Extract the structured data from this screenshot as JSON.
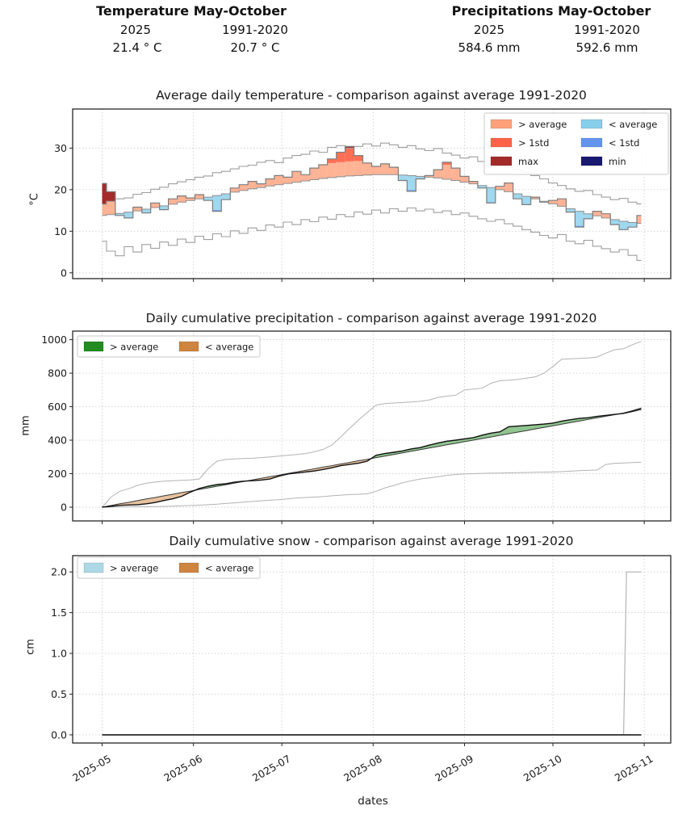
{
  "header": {
    "temperature": {
      "title": "Temperature May-October",
      "period1": "2025",
      "period2": "1991-2020",
      "value1": "21.4 ° C",
      "value2": "20.7 ° C"
    },
    "precipitation": {
      "title": "Precipitations May-October",
      "period1": "2025",
      "period2": "1991-2020",
      "value1": "584.6 mm",
      "value2": "592.6 mm"
    }
  },
  "xaxis": {
    "label": "dates",
    "tick_labels": [
      "2025-05",
      "2025-06",
      "2025-07",
      "2025-08",
      "2025-09",
      "2025-10",
      "2025-11"
    ],
    "tick_days": [
      0,
      31,
      61,
      92,
      123,
      153,
      184
    ]
  },
  "chart_data": [
    {
      "type": "line",
      "kind": "temperature_anomaly",
      "title": "Average daily temperature - comparison against average 1991-2020",
      "ylabel": "°C",
      "yticks": [
        0,
        10,
        20,
        30
      ],
      "ytick_labels": [
        "0",
        "10",
        "20",
        "30"
      ],
      "ylim": [
        -1.4,
        39.4
      ],
      "std_band": 3.5,
      "grid": true,
      "legend_position": "top-right",
      "legend": [
        {
          "label": "> average",
          "color": "#FFA07A"
        },
        {
          "label": "> 1std",
          "color": "#FF6347"
        },
        {
          "label": "max",
          "color": "#A52A2A"
        },
        {
          "label": "< average",
          "color": "#87CEEB"
        },
        {
          "label": "< 1std",
          "color": "#6495ED"
        },
        {
          "label": "min",
          "color": "#191970"
        }
      ],
      "days": [
        0,
        3,
        6,
        9,
        12,
        15,
        18,
        21,
        24,
        27,
        30,
        33,
        36,
        39,
        42,
        45,
        48,
        51,
        54,
        57,
        60,
        63,
        66,
        69,
        72,
        75,
        78,
        81,
        84,
        87,
        90,
        93,
        96,
        99,
        102,
        105,
        108,
        111,
        114,
        117,
        120,
        123,
        126,
        129,
        132,
        135,
        138,
        141,
        144,
        147,
        150,
        153,
        156,
        159,
        162,
        165,
        168,
        171,
        174,
        177,
        180,
        183
      ],
      "series": [
        {
          "name": "max 1991-2020",
          "role": "clim_max",
          "color": "#9e9e9e",
          "width": 1.1,
          "values": [
            16.5,
            17.2,
            17.8,
            18.0,
            18.9,
            19.3,
            20.1,
            20.6,
            21.4,
            21.9,
            22.4,
            23.0,
            23.3,
            24.1,
            24.4,
            25.0,
            25.6,
            25.9,
            26.6,
            27.0,
            26.5,
            27.6,
            28.2,
            28.5,
            29.3,
            29.0,
            30.2,
            30.6,
            30.0,
            30.4,
            31.0,
            30.5,
            31.2,
            30.8,
            30.2,
            30.6,
            29.8,
            29.4,
            29.9,
            28.8,
            28.3,
            27.6,
            27.9,
            26.8,
            26.2,
            26.6,
            25.4,
            24.8,
            24.2,
            23.4,
            22.6,
            21.6,
            21.0,
            20.2,
            19.6,
            19.8,
            18.8,
            18.2,
            17.6,
            17.9,
            17.0,
            16.6
          ]
        },
        {
          "name": "mean 1991-2020",
          "role": "clim_mean",
          "color": "#8f8f8f",
          "width": 1.0,
          "values": [
            13.8,
            14.0,
            14.3,
            14.6,
            14.9,
            15.3,
            15.7,
            16.1,
            16.5,
            17.0,
            17.4,
            17.8,
            18.2,
            18.6,
            19.0,
            19.4,
            19.8,
            20.2,
            20.5,
            20.9,
            21.2,
            21.5,
            21.8,
            22.1,
            22.4,
            22.7,
            22.9,
            23.1,
            23.3,
            23.4,
            23.5,
            23.6,
            23.6,
            23.6,
            23.5,
            23.4,
            23.2,
            23.0,
            22.8,
            22.5,
            22.2,
            21.8,
            21.4,
            21.0,
            20.5,
            20.0,
            19.5,
            19.0,
            18.4,
            17.8,
            17.2,
            16.6,
            16.0,
            15.4,
            14.8,
            14.2,
            13.7,
            13.2,
            12.8,
            12.4,
            12.1,
            11.9
          ]
        },
        {
          "name": "min 1991-2020",
          "role": "clim_min",
          "color": "#9e9e9e",
          "width": 1.1,
          "values": [
            7.6,
            5.2,
            4.1,
            6.3,
            5.0,
            6.8,
            5.9,
            7.4,
            6.6,
            8.1,
            7.3,
            8.8,
            8.0,
            9.4,
            8.7,
            10.1,
            9.5,
            10.8,
            10.2,
            11.5,
            11.0,
            12.2,
            11.6,
            12.8,
            12.3,
            13.4,
            12.9,
            14.0,
            13.5,
            14.6,
            14.1,
            15.1,
            14.4,
            15.4,
            14.8,
            15.6,
            14.9,
            15.3,
            14.5,
            14.9,
            14.0,
            14.4,
            13.6,
            13.0,
            12.4,
            12.8,
            11.8,
            11.2,
            10.4,
            9.8,
            9.0,
            8.4,
            9.2,
            7.6,
            7.0,
            7.8,
            6.4,
            5.8,
            5.0,
            5.6,
            4.2,
            3.0
          ]
        },
        {
          "name": "2025",
          "role": "year",
          "color": "#7d7d7d",
          "width": 1.2,
          "values": [
            21.5,
            19.5,
            13.8,
            13.2,
            15.8,
            14.4,
            16.8,
            15.2,
            17.8,
            18.5,
            18.0,
            18.8,
            17.4,
            14.8,
            17.6,
            20.4,
            21.2,
            22.0,
            21.4,
            22.6,
            23.4,
            23.0,
            24.4,
            23.6,
            25.2,
            26.0,
            27.4,
            29.0,
            30.4,
            28.2,
            26.4,
            25.6,
            26.2,
            25.4,
            22.2,
            19.6,
            22.6,
            23.4,
            24.8,
            26.6,
            25.2,
            23.2,
            22.0,
            20.4,
            16.8,
            20.8,
            21.6,
            17.8,
            16.4,
            18.2,
            17.0,
            17.4,
            17.8,
            14.6,
            11.0,
            13.0,
            14.8,
            14.2,
            11.6,
            10.4,
            11.0,
            13.8
          ]
        }
      ]
    },
    {
      "type": "line",
      "kind": "cumulative_anomaly",
      "title": "Daily cumulative precipitation - comparison against average 1991-2020",
      "ylabel": "mm",
      "yticks": [
        0,
        200,
        400,
        600,
        800,
        1000
      ],
      "ytick_labels": [
        "0",
        "200",
        "400",
        "600",
        "800",
        "1000"
      ],
      "ylim": [
        -82,
        1051
      ],
      "grid": true,
      "legend_position": "top-left",
      "legend": [
        {
          "label": "> average",
          "color": "#228B22"
        },
        {
          "label": "< average",
          "color": "#CD853F"
        }
      ],
      "days": [
        0,
        3,
        6,
        9,
        12,
        15,
        18,
        21,
        24,
        27,
        30,
        33,
        36,
        39,
        42,
        45,
        48,
        51,
        54,
        57,
        60,
        63,
        66,
        69,
        72,
        75,
        78,
        81,
        84,
        87,
        90,
        93,
        96,
        99,
        102,
        105,
        108,
        111,
        114,
        117,
        120,
        123,
        126,
        129,
        132,
        135,
        138,
        141,
        144,
        147,
        150,
        153,
        156,
        159,
        162,
        165,
        168,
        171,
        174,
        177,
        180,
        183
      ],
      "series": [
        {
          "name": "max 1991-2020",
          "role": "clim_max",
          "color": "#b3b3b3",
          "width": 1.0,
          "values": [
            0,
            60,
            95,
            110,
            130,
            143,
            150,
            155,
            158,
            160,
            163,
            168,
            230,
            275,
            285,
            288,
            290,
            292,
            296,
            300,
            305,
            310,
            315,
            320,
            330,
            345,
            370,
            420,
            470,
            520,
            565,
            610,
            618,
            622,
            625,
            628,
            632,
            640,
            655,
            663,
            668,
            700,
            705,
            710,
            740,
            755,
            758,
            762,
            770,
            778,
            800,
            840,
            883,
            886,
            888,
            891,
            896,
            920,
            940,
            946,
            970,
            990
          ]
        },
        {
          "name": "mean 1991-2020",
          "role": "clim_mean",
          "color": "#3a3a3a",
          "width": 1.0,
          "values": [
            0,
            10,
            20,
            29,
            39,
            49,
            58,
            68,
            77,
            87,
            96,
            106,
            115,
            125,
            134,
            144,
            153,
            163,
            172,
            182,
            191,
            201,
            210,
            220,
            229,
            239,
            248,
            258,
            267,
            277,
            286,
            296,
            305,
            315,
            324,
            334,
            343,
            353,
            362,
            372,
            381,
            391,
            400,
            410,
            419,
            429,
            438,
            448,
            457,
            467,
            476,
            486,
            495,
            505,
            514,
            524,
            533,
            543,
            552,
            562,
            576,
            592.6
          ]
        },
        {
          "name": "min 1991-2020",
          "role": "clim_min",
          "color": "#b3b3b3",
          "width": 1.0,
          "values": [
            0,
            1,
            2,
            2,
            3,
            3,
            4,
            5,
            6,
            8,
            10,
            12,
            15,
            18,
            22,
            26,
            30,
            34,
            38,
            42,
            45,
            50,
            55,
            58,
            60,
            63,
            68,
            72,
            75,
            77,
            80,
            95,
            115,
            130,
            145,
            158,
            168,
            175,
            182,
            190,
            195,
            198,
            200,
            202,
            203,
            204,
            205,
            206,
            207,
            208,
            209,
            210,
            212,
            215,
            218,
            220,
            222,
            255,
            262,
            264,
            266,
            268
          ]
        },
        {
          "name": "2025",
          "role": "year",
          "color": "#111111",
          "width": 1.4,
          "values": [
            0,
            5,
            11,
            13,
            15,
            20,
            28,
            40,
            50,
            65,
            90,
            112,
            125,
            135,
            140,
            150,
            155,
            158,
            162,
            168,
            185,
            198,
            204,
            210,
            216,
            225,
            235,
            248,
            255,
            262,
            275,
            310,
            320,
            328,
            336,
            348,
            356,
            370,
            383,
            394,
            400,
            408,
            415,
            430,
            442,
            450,
            480,
            484,
            488,
            492,
            496,
            502,
            514,
            522,
            530,
            534,
            542,
            548,
            554,
            560,
            572,
            584.6
          ]
        }
      ]
    },
    {
      "type": "line",
      "kind": "cumulative_anomaly",
      "title": "Daily cumulative snow - comparison against average 1991-2020",
      "ylabel": "cm",
      "yticks": [
        0,
        0.5,
        1,
        1.5,
        2
      ],
      "ytick_labels": [
        "0.0",
        "0.5",
        "1.0",
        "1.5",
        "2.0"
      ],
      "ylim": [
        -0.1,
        2.2
      ],
      "grid": true,
      "legend_position": "top-left",
      "legend": [
        {
          "label": "> average",
          "color": "#ADD8E6"
        },
        {
          "label": "< average",
          "color": "#CD853F"
        }
      ],
      "series": [
        {
          "name": "max 1991-2020",
          "role": "clim_max",
          "color": "#b3b3b3",
          "width": 1.2,
          "days": [
            0,
            177,
            178,
            183
          ],
          "values": [
            0,
            0,
            2,
            2
          ]
        },
        {
          "name": "mean 1991-2020",
          "role": "clim_mean",
          "color": "#4a4a4a",
          "width": 1.0,
          "days": [
            0,
            183
          ],
          "values": [
            0,
            0
          ]
        },
        {
          "name": "2025",
          "role": "year",
          "color": "#222222",
          "width": 1.6,
          "days": [
            0,
            183
          ],
          "values": [
            0,
            0
          ]
        }
      ]
    }
  ]
}
